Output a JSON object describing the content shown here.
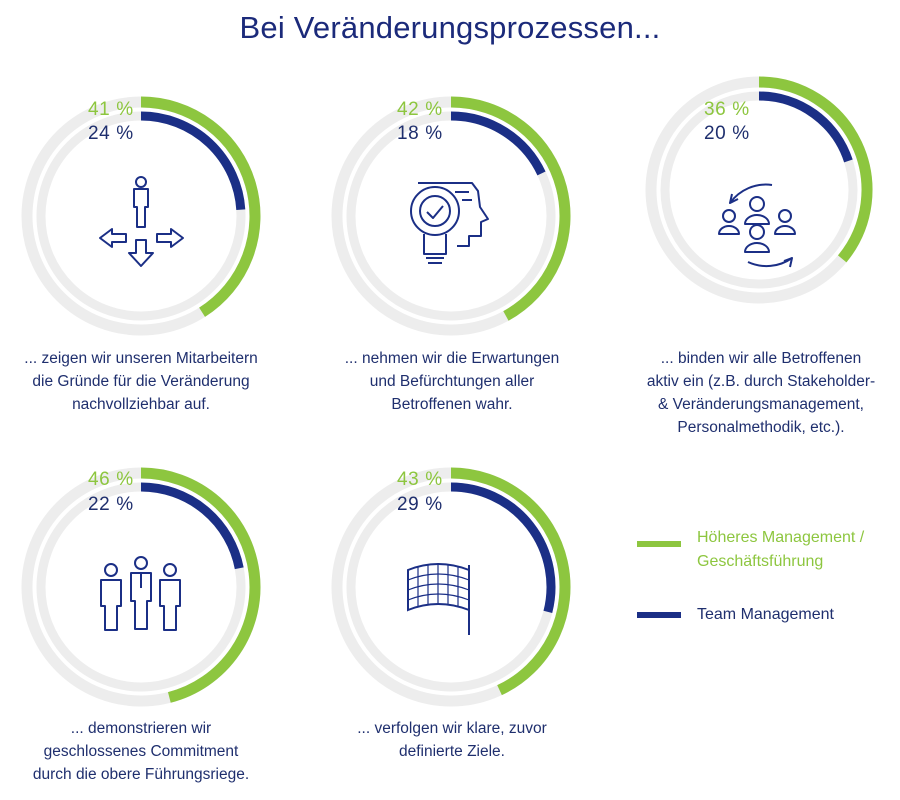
{
  "title": "Bei Veränderungsprozessen...",
  "colors": {
    "senior": "#8dc63f",
    "team": "#1b2f86",
    "track": "#ededed",
    "text": "#1f2f6e"
  },
  "chart_data": {
    "type": "radial-bar",
    "title": "Bei Veränderungsprozessen...",
    "series": [
      {
        "name": "Höheres Management / Geschäftsführung",
        "values": [
          41,
          42,
          36,
          46,
          43
        ]
      },
      {
        "name": "Team Management",
        "values": [
          24,
          18,
          20,
          22,
          29
        ]
      }
    ],
    "categories": [
      "... zeigen wir unseren Mitarbeitern die Gründe für die Veränderung nachvollziehbar auf.",
      "... nehmen wir die Erwartungen und Befürchtungen aller Betroffenen wahr.",
      "... binden wir alle Betroffenen aktiv ein (z.B. durch Stakeholder- & Veränderungsmanagement, Personalmethodik, etc.).",
      "... demonstrieren wir geschlossenes Commitment durch die obere Führungsriege.",
      "... verfolgen wir klare, zuvor definierte Ziele."
    ],
    "unit": "%",
    "legend_position": "right"
  },
  "items": [
    {
      "senior_label": "41 %",
      "team_label": "24 %",
      "caption_lines": [
        "... zeigen wir unseren Mitarbeitern",
        "die Gründe für die Veränderung",
        "nachvollziehbar auf."
      ],
      "icon": "crossroads-person-icon"
    },
    {
      "senior_label": "42 %",
      "team_label": "18 %",
      "caption_lines": [
        "... nehmen wir die Erwartungen",
        "und Befürchtungen aller",
        "Betroffenen wahr."
      ],
      "icon": "idea-head-icon"
    },
    {
      "senior_label": "36 %",
      "team_label": "20 %",
      "caption_lines": [
        "... binden wir alle Betroffenen",
        "aktiv ein (z.B. durch Stakeholder-",
        "& Veränderungsmanagement,",
        "Personalmethodik, etc.)."
      ],
      "icon": "team-cycle-icon"
    },
    {
      "senior_label": "46 %",
      "team_label": "22 %",
      "caption_lines": [
        "... demonstrieren wir",
        "geschlossenes Commitment",
        "durch die obere Führungsriege."
      ],
      "icon": "leadership-group-icon"
    },
    {
      "senior_label": "43 %",
      "team_label": "29 %",
      "caption_lines": [
        "... verfolgen wir klare, zuvor",
        "definierte Ziele."
      ],
      "icon": "checkered-flag-icon"
    }
  ],
  "legend": {
    "senior_lines": [
      "Höheres Management /",
      "Geschäftsführung"
    ],
    "team_label": "Team Management"
  }
}
